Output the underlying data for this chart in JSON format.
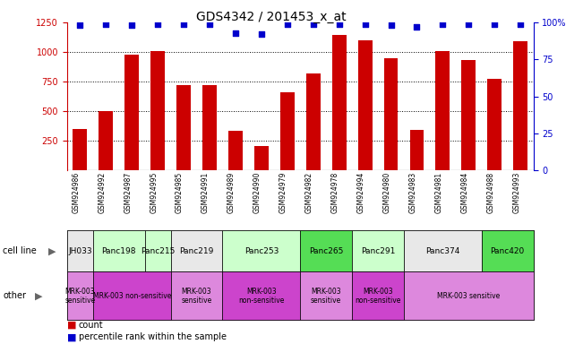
{
  "title": "GDS4342 / 201453_x_at",
  "samples": [
    "GSM924986",
    "GSM924992",
    "GSM924987",
    "GSM924995",
    "GSM924985",
    "GSM924991",
    "GSM924989",
    "GSM924990",
    "GSM924979",
    "GSM924982",
    "GSM924978",
    "GSM924994",
    "GSM924980",
    "GSM924983",
    "GSM924981",
    "GSM924984",
    "GSM924988",
    "GSM924993"
  ],
  "counts": [
    350,
    500,
    975,
    1010,
    720,
    720,
    330,
    205,
    660,
    820,
    1140,
    1100,
    950,
    340,
    1005,
    930,
    775,
    1090
  ],
  "percentile_ranks": [
    98,
    99,
    98,
    99,
    99,
    99,
    93,
    92,
    99,
    99,
    99,
    99,
    98,
    97,
    99,
    99,
    99,
    99
  ],
  "ylim_left": [
    0,
    1250
  ],
  "ylim_right": [
    0,
    100
  ],
  "yticks_left": [
    250,
    500,
    750,
    1000,
    1250
  ],
  "yticks_right": [
    0,
    25,
    50,
    75,
    100
  ],
  "bar_color": "#cc0000",
  "dot_color": "#0000cc",
  "cell_line_order": [
    "JH033",
    "Panc198",
    "Panc215",
    "Panc219",
    "Panc253",
    "Panc265",
    "Panc291",
    "Panc374",
    "Panc420"
  ],
  "cell_line_spans": {
    "JH033": [
      0,
      0
    ],
    "Panc198": [
      1,
      2
    ],
    "Panc215": [
      3,
      3
    ],
    "Panc219": [
      4,
      5
    ],
    "Panc253": [
      6,
      8
    ],
    "Panc265": [
      9,
      10
    ],
    "Panc291": [
      11,
      12
    ],
    "Panc374": [
      13,
      15
    ],
    "Panc420": [
      16,
      17
    ]
  },
  "cell_line_colors": {
    "JH033": "#e8e8e8",
    "Panc198": "#ccffcc",
    "Panc215": "#ccffcc",
    "Panc219": "#e8e8e8",
    "Panc253": "#ccffcc",
    "Panc265": "#55dd55",
    "Panc291": "#ccffcc",
    "Panc374": "#e8e8e8",
    "Panc420": "#55dd55"
  },
  "other_row": [
    {
      "label": "MRK-003\nsensitive",
      "start": 0,
      "end": 0,
      "color": "#dd88dd"
    },
    {
      "label": "MRK-003 non-sensitive",
      "start": 1,
      "end": 3,
      "color": "#cc44cc"
    },
    {
      "label": "MRK-003\nsensitive",
      "start": 4,
      "end": 5,
      "color": "#dd88dd"
    },
    {
      "label": "MRK-003\nnon-sensitive",
      "start": 6,
      "end": 8,
      "color": "#cc44cc"
    },
    {
      "label": "MRK-003\nsensitive",
      "start": 9,
      "end": 10,
      "color": "#dd88dd"
    },
    {
      "label": "MRK-003\nnon-sensitive",
      "start": 11,
      "end": 12,
      "color": "#cc44cc"
    },
    {
      "label": "MRK-003 sensitive",
      "start": 13,
      "end": 17,
      "color": "#dd88dd"
    }
  ],
  "left_axis_color": "#cc0000",
  "right_axis_color": "#0000cc",
  "tick_label_fontsize": 7,
  "sample_fontsize": 5.5,
  "cell_fontsize": 6.5,
  "other_fontsize": 5.5,
  "legend_fontsize": 7,
  "title_fontsize": 10
}
